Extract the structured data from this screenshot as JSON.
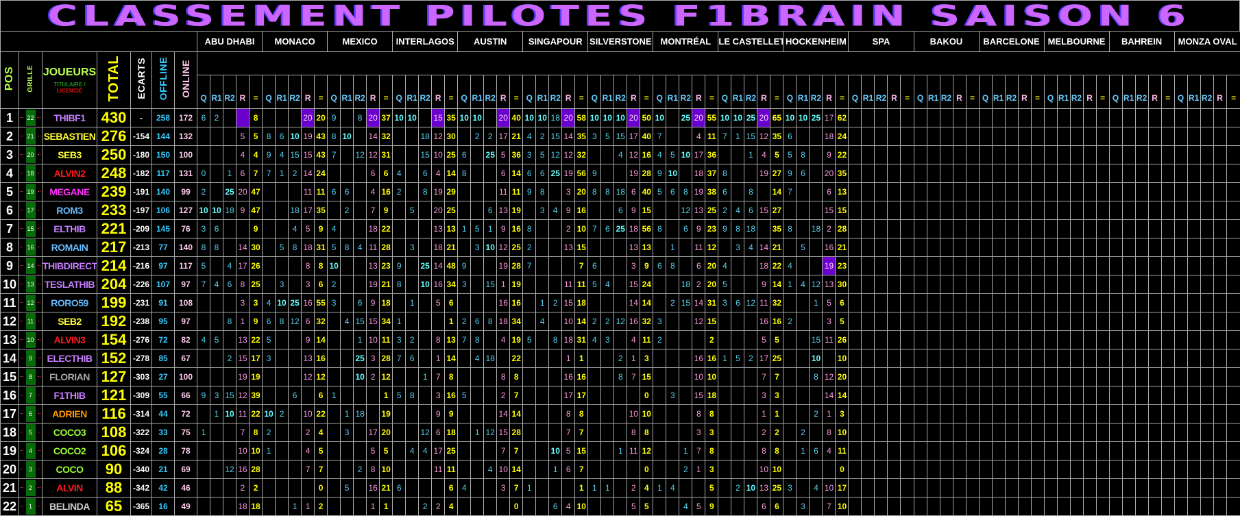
{
  "title": "CLASSEMENT PILOTES F1BRAIN SAISON 6",
  "headers": {
    "pos": "POS",
    "grille": "GRILLE",
    "joueurs": "JOUEURS",
    "titulaire": "TITULAIRE /",
    "licencie": "LICENCIÉ",
    "total": "TOTAL",
    "ecarts": "ECARTS",
    "offline": "OFFLINE",
    "online": "ONLINE"
  },
  "sub_columns": [
    "Q",
    "R1",
    "R2",
    "R",
    "="
  ],
  "races": [
    "ABU DHABI",
    "MONACO",
    "MEXICO",
    "INTERLAGOS",
    "AUSTIN",
    "SINGAPOUR",
    "SILVERSTONE",
    "MONTRÉAL",
    "LE CASTELLET",
    "HOCKENHEIM",
    "SPA",
    "BAKOU",
    "BARCELONE",
    "MELBOURNE",
    "BAHREIN",
    "MONZA OVAL"
  ],
  "colors": {
    "title": "#cc66ff",
    "titulaire": "#1a8f1a",
    "licencie": "#dd1111",
    "total": "#ffff00",
    "offline": "#33ccff",
    "online": "#ffccee",
    "qualif": "#55d0ee",
    "race": "#ff99dd",
    "sum": "#ffff00",
    "highlight": "#6a00cc",
    "grille_box": "#086a0a"
  },
  "highlights": [
    {
      "row": 1,
      "race": "ABU DHABI",
      "col": "R"
    },
    {
      "row": 1,
      "race": "MONACO",
      "col": "R"
    },
    {
      "row": 1,
      "race": "MEXICO",
      "col": "R"
    },
    {
      "row": 1,
      "race": "INTERLAGOS",
      "col": "R"
    },
    {
      "row": 1,
      "race": "AUSTIN",
      "col": "R"
    },
    {
      "row": 1,
      "race": "SINGAPOUR",
      "col": "R"
    },
    {
      "row": 1,
      "race": "SILVERSTONE",
      "col": "R"
    },
    {
      "row": 1,
      "race": "MONTRÉAL",
      "col": "R"
    },
    {
      "row": 1,
      "race": "LE CASTELLET",
      "col": "R"
    },
    {
      "row": 9,
      "race": "HOCKENHEIM",
      "col": "R"
    }
  ],
  "rows": [
    {
      "pos": 1,
      "grille": 22,
      "name": "THIBF1",
      "name_color": "#c77dff",
      "total": 430,
      "ecart": "-",
      "offline": 258,
      "online": 172,
      "results": [
        "6,2,,,8",
        ",,,20,20",
        "9,,8,20,37",
        "10,10,,15,35",
        "10,10,,20,40",
        "10,10,18,20,58",
        "10,10,10,20,50",
        "10,,25,20,55",
        "10,10,25,20,65",
        "10,10,25,17,62"
      ]
    },
    {
      "pos": 2,
      "grille": 21,
      "name": "SEBASTIEN",
      "name_color": "#ffff33",
      "total": 276,
      "ecart": "-154",
      "offline": 144,
      "online": 132,
      "results": [
        ",,,5,5",
        "8,6,10,19,43",
        "8,10,,14,32",
        ",,18,12,30",
        ",2,2,17,21",
        "4,2,15,14,35",
        "3,5,15,17,40",
        "7,,,4,11",
        "7,1,15,12,35",
        "6,,,18,24"
      ]
    },
    {
      "pos": 3,
      "grille": 20,
      "name": "SEB3",
      "name_color": "#ffff33",
      "total": 250,
      "ecart": "-180",
      "offline": 150,
      "online": 100,
      "results": [
        ",,,4,4",
        "9,4,15,15,43",
        "7,,12,12,31",
        ",,15,10,25",
        "6,,25,5,36",
        "3,5,12,12,32",
        ",,4,12,16",
        "4,5,10,17,36",
        ",,1,4,5",
        "5,8,,9,22"
      ]
    },
    {
      "pos": 4,
      "grille": 18,
      "name": "ALVIN2",
      "name_color": "#ff1a1a",
      "total": 248,
      "ecart": "-182",
      "offline": 117,
      "online": 131,
      "results": [
        "0,,1,6,7",
        "7,1,2,14,24",
        ",,,6,6",
        "4,,6,4,14",
        "8,,,6,14",
        "6,6,25,19,56",
        "9,,,19,28",
        "9,10,,18,37",
        "8,,,19,27",
        "9,6,,20,35"
      ]
    },
    {
      "pos": 5,
      "grille": 19,
      "name": "MEGANE",
      "name_color": "#ff33ff",
      "total": 239,
      "ecart": "-191",
      "offline": 140,
      "online": 99,
      "results": [
        "2,,25,20,47",
        ",,,11,11",
        "6,6,,4,16",
        "2,,8,19,29",
        ",,,11,11",
        "9,8,,3,20",
        "8,8,18,6,40",
        "5,6,8,19,38",
        "6,,8,,14",
        "7,,,6,13"
      ]
    },
    {
      "pos": 6,
      "grille": 17,
      "name": "ROM3",
      "name_color": "#66bbff",
      "total": 233,
      "ecart": "-197",
      "offline": 106,
      "online": 127,
      "results": [
        "10,10,18,9,47",
        ",,18,17,35",
        ",2,,7,9",
        ",5,,20,25",
        ",,6,13,19",
        ",3,4,9,16",
        ",,6,9,15",
        ",,12,13,25",
        "2,4,6,15,27",
        ",,,15,15"
      ]
    },
    {
      "pos": 7,
      "grille": 15,
      "name": "ELTHIB",
      "name_color": "#c77dff",
      "total": 221,
      "ecart": "-209",
      "offline": 145,
      "online": 76,
      "results": [
        "3,6,,,9",
        ",,4,5,9",
        "4,,,18,22",
        ",,,13,13",
        "1,5,1,9,16",
        "8,,,2,10",
        "7,6,25,18,56",
        "8,,6,9,23",
        "9,8,18,,35",
        "8,,18,2,28"
      ]
    },
    {
      "pos": 8,
      "grille": 16,
      "name": "ROMAIN",
      "name_color": "#66bbff",
      "total": 217,
      "ecart": "-213",
      "offline": 77,
      "online": 140,
      "results": [
        "8,8,,14,30",
        ",5,8,18,31",
        "5,8,4,11,28",
        ",3,,18,21",
        ",3,10,12,25",
        "2,,,13,15",
        ",,,13,13",
        ",1,,11,12",
        ",3,4,14,21",
        ",5,,16,21"
      ]
    },
    {
      "pos": 9,
      "grille": 14,
      "name": "THIBDIRECT",
      "name_color": "#c77dff",
      "total": 214,
      "ecart": "-216",
      "offline": 97,
      "online": 117,
      "results": [
        "5,,4,17,26",
        ",,,8,8",
        "10,,,13,23",
        "9,,25,14,48",
        "9,,,19,28",
        "7,,,,7",
        "6,,,3,9",
        "6,8,,6,20",
        "4,,,18,22",
        "4,,,19,23"
      ]
    },
    {
      "pos": 10,
      "grille": 13,
      "name": "TESLATHIB",
      "name_color": "#c77dff",
      "total": 204,
      "ecart": "-226",
      "offline": 107,
      "online": 97,
      "results": [
        "7,4,6,8,25",
        ",3,,3,6",
        "2,,,19,21",
        "8,,10,16,34",
        "3,,15,1,19",
        ",,,11,11",
        "5,4,,15,24",
        ",,18,2,20",
        "5,,,9,14",
        "1,4,12,13,30"
      ]
    },
    {
      "pos": 11,
      "grille": 12,
      "name": "RORO59",
      "name_color": "#66bbff",
      "total": 199,
      "ecart": "-231",
      "offline": 91,
      "online": 108,
      "results": [
        ",,,3,3",
        "4,10,25,16,55",
        "3,,6,9,18",
        ",1,,5,6",
        ",,,16,16",
        ",1,2,15,18",
        ",,,14,14",
        ",2,15,14,31",
        "3,6,12,11,32",
        ",,1,5,6"
      ]
    },
    {
      "pos": 12,
      "grille": 11,
      "name": "SEB2",
      "name_color": "#ffff33",
      "total": 192,
      "ecart": "-238",
      "offline": 95,
      "online": 97,
      "results": [
        ",,8,1,9",
        "6,8,12,6,32",
        ",4,15,15,34",
        "1,,,,1",
        "2,6,8,18,34",
        ",4,,10,14",
        "2,2,12,16,32",
        "3,,,12,15",
        ",,,16,16",
        "2,,,3,5"
      ]
    },
    {
      "pos": 13,
      "grille": 10,
      "name": "ALVIN3",
      "name_color": "#ff1a1a",
      "total": 154,
      "ecart": "-276",
      "offline": 72,
      "online": 82,
      "results": [
        "4,5,,13,22",
        "5,,,9,14",
        ",,1,10,11",
        "3,2,,8,13",
        "7,8,,4,19",
        "5,,8,18,31",
        "4,3,,4,11",
        "2,,,,2",
        ",,,5,5",
        ",,15,11,26"
      ]
    },
    {
      "pos": 14,
      "grille": 9,
      "name": "ELECTHIB",
      "name_color": "#c77dff",
      "total": 152,
      "ecart": "-278",
      "offline": 85,
      "online": 67,
      "results": [
        ",,2,15,17",
        "3,,,13,16",
        ",,25,3,28",
        "7,6,,1,14",
        ",4,18,,22",
        ",,,1,1",
        ",,2,1,3",
        ",,,16,16",
        "1,5,2,17,25",
        ",,10,,10"
      ]
    },
    {
      "pos": 15,
      "grille": 8,
      "name": "FLORIAN",
      "name_color": "#aaaaaa",
      "total": 127,
      "ecart": "-303",
      "offline": 27,
      "online": 100,
      "results": [
        ",,,19,19",
        ",,,12,12",
        ",,10,2,12",
        ",,1,7,8",
        ",,,8,8",
        ",,,16,16",
        ",,8,7,15",
        ",,,10,10",
        ",,,7,7",
        ",,8,12,20"
      ]
    },
    {
      "pos": 16,
      "grille": 7,
      "name": "F1THIB",
      "name_color": "#c77dff",
      "total": 121,
      "ecart": "-309",
      "offline": 55,
      "online": 66,
      "results": [
        "9,3,15,12,39",
        ",,6,,6",
        "1,,,,1",
        "5,8,,3,16",
        "5,,,2,7",
        ",,,17,17",
        ",,,,0",
        ",3,,15,18",
        ",,,3,3",
        ",,,14,14"
      ]
    },
    {
      "pos": 17,
      "grille": 6,
      "name": "ADRIEN",
      "name_color": "#ff9900",
      "total": 116,
      "ecart": "-314",
      "offline": 44,
      "online": 72,
      "results": [
        ",1,10,11,22",
        "10,2,,10,22",
        ",1,18,,19",
        ",,,9,9",
        ",,,14,14",
        ",,,8,8",
        ",,,10,10",
        ",,,8,8",
        ",,,1,1",
        ",,2,1,3"
      ]
    },
    {
      "pos": 18,
      "grille": 5,
      "name": "COCO3",
      "name_color": "#99ff33",
      "total": 108,
      "ecart": "-322",
      "offline": 33,
      "online": 75,
      "results": [
        "1,,,7,8",
        "2,,,2,4",
        ",3,,17,20",
        ",,12,6,18",
        ",1,12,15,28",
        ",,,7,7",
        ",,,8,8",
        ",,,3,3",
        ",,,2,2",
        ",2,,8,10"
      ]
    },
    {
      "pos": 19,
      "grille": 4,
      "name": "COCO2",
      "name_color": "#99ff33",
      "total": 106,
      "ecart": "-324",
      "offline": 28,
      "online": 78,
      "results": [
        ",,,10,10",
        "1,,,4,5",
        ",,,5,5",
        ",4,4,17,25",
        ",,,7,7",
        ",,10,5,15",
        ",,1,11,12",
        ",,1,7,8",
        ",,,8,8",
        ",1,6,4,11"
      ]
    },
    {
      "pos": 20,
      "grille": 3,
      "name": "COCO",
      "name_color": "#99ff33",
      "total": 90,
      "ecart": "-340",
      "offline": 21,
      "online": 69,
      "results": [
        ",,12,16,28",
        ",,,7,7",
        ",,2,8,10",
        ",,,11,11",
        ",,4,10,14",
        ",,1,6,7",
        ",,,,0",
        ",,2,1,3",
        ",,,10,10",
        ",,,,0"
      ]
    },
    {
      "pos": 21,
      "grille": 2,
      "name": "ALVIN",
      "name_color": "#ff1a1a",
      "total": 88,
      "ecart": "-342",
      "offline": 42,
      "online": 46,
      "results": [
        ",,,2,2",
        ",,,,0",
        ",5,,16,21",
        "6,,,,6",
        "4,,,3,7",
        "1,,,,1",
        "1,1,,2,4",
        "1,4,,,5",
        ",2,10,13,25",
        "3,,4,10,17"
      ]
    },
    {
      "pos": 22,
      "grille": 1,
      "name": "BELINDA",
      "name_color": "#cccccc",
      "total": 65,
      "ecart": "-365",
      "offline": 16,
      "online": 49,
      "results": [
        ",,,18,18",
        ",,1,1,2",
        ",,,1,1",
        ",,2,2,4",
        ",,,,0",
        ",,6,4,10",
        ",,,5,5",
        ",,4,5,9",
        ",,,6,6",
        ",3,,7,10"
      ]
    }
  ]
}
